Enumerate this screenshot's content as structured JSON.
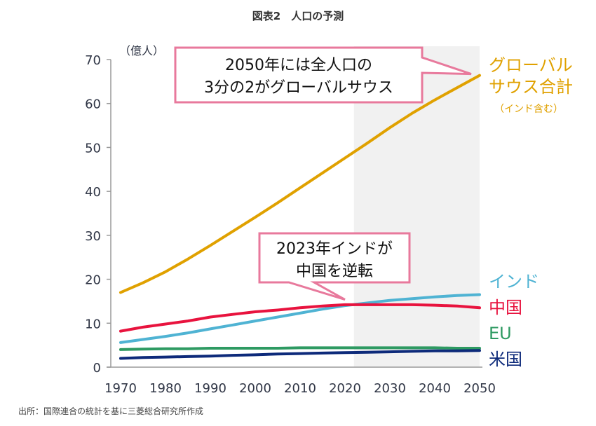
{
  "title": "図表2　人口の予測",
  "source": "出所：国際連合の統計を基に三菱総合研究所作成",
  "chart_data": {
    "type": "line",
    "title": "図表2　人口の予測",
    "xlabel": "",
    "ylabel": "（億人）",
    "xlim": [
      1970,
      2050
    ],
    "ylim": [
      0,
      70
    ],
    "xticks": [
      1970,
      1980,
      1990,
      2000,
      2010,
      2020,
      2030,
      2040,
      2050
    ],
    "yticks": [
      0,
      10,
      20,
      30,
      40,
      50,
      60,
      70
    ],
    "grid": false,
    "shaded_region": {
      "from": 2022,
      "to": 2050,
      "meaning": "projection",
      "color": "#f1f1f1"
    },
    "x": [
      1970,
      1975,
      1980,
      1985,
      1990,
      1995,
      2000,
      2005,
      2010,
      2015,
      2020,
      2025,
      2030,
      2035,
      2040,
      2045,
      2050
    ],
    "series": [
      {
        "name": "グローバルサウス合計",
        "label_lines": [
          "グローバル",
          "サウス合計"
        ],
        "sublabel": "（インド含む）",
        "color": "#e0a100",
        "values": [
          17.0,
          19.2,
          21.7,
          24.6,
          27.7,
          30.9,
          34.1,
          37.4,
          40.8,
          44.2,
          47.6,
          51.0,
          54.5,
          57.8,
          60.8,
          63.6,
          66.4
        ]
      },
      {
        "name": "インド",
        "label_lines": [
          "インド"
        ],
        "color": "#4fb3d3",
        "values": [
          5.6,
          6.3,
          7.0,
          7.8,
          8.7,
          9.6,
          10.5,
          11.4,
          12.3,
          13.2,
          14.0,
          14.6,
          15.2,
          15.6,
          16.0,
          16.3,
          16.5
        ]
      },
      {
        "name": "中国",
        "label_lines": [
          "中国"
        ],
        "color": "#e8133e",
        "values": [
          8.2,
          9.1,
          9.8,
          10.5,
          11.4,
          12.0,
          12.6,
          13.0,
          13.5,
          13.9,
          14.2,
          14.2,
          14.2,
          14.2,
          14.1,
          13.9,
          13.5
        ]
      },
      {
        "name": "EU",
        "label_lines": [
          "EU"
        ],
        "color": "#2e9a62",
        "values": [
          4.0,
          4.1,
          4.2,
          4.2,
          4.3,
          4.3,
          4.3,
          4.3,
          4.4,
          4.4,
          4.4,
          4.4,
          4.4,
          4.4,
          4.4,
          4.3,
          4.3
        ]
      },
      {
        "name": "米国",
        "label_lines": [
          "米国"
        ],
        "color": "#0d2a7a",
        "values": [
          2.0,
          2.2,
          2.3,
          2.4,
          2.5,
          2.7,
          2.8,
          3.0,
          3.1,
          3.2,
          3.3,
          3.4,
          3.5,
          3.6,
          3.7,
          3.7,
          3.8
        ]
      }
    ],
    "annotations": [
      {
        "lines": [
          "2050年には全人口の",
          "3分の2がグローバルサウス"
        ],
        "target": {
          "x": 2050,
          "y": 66.4
        },
        "border_color": "#e8799c"
      },
      {
        "lines": [
          "2023年インドが",
          "中国を逆転"
        ],
        "target": {
          "x": 2020,
          "y": 14.1
        },
        "border_color": "#e8799c"
      }
    ]
  }
}
